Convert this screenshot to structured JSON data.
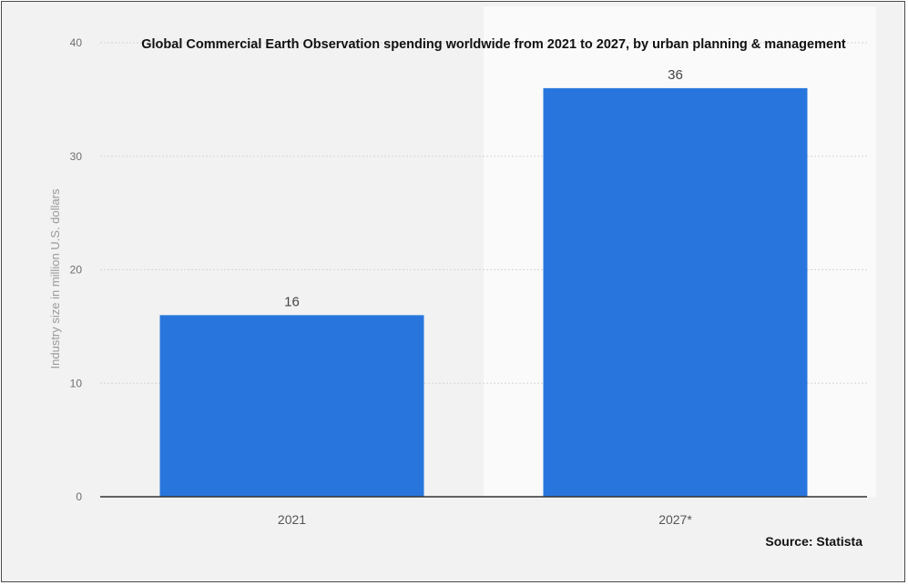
{
  "chart_data": {
    "type": "bar",
    "title": "Global Commercial Earth Observation spending worldwide from 2021 to 2027, by urban planning & management",
    "xlabel": "",
    "ylabel": "Industry size in million U.S. dollars",
    "categories": [
      "2021",
      "2027*"
    ],
    "values": [
      16,
      36
    ],
    "data_labels": [
      "16",
      "36"
    ],
    "ylim": [
      0,
      40
    ],
    "yticks": [
      0,
      10,
      20,
      30,
      40
    ],
    "grid": true,
    "bar_color": "#2876dd",
    "highlight_region_color": "#fafafa",
    "source": "Source: Statista"
  }
}
